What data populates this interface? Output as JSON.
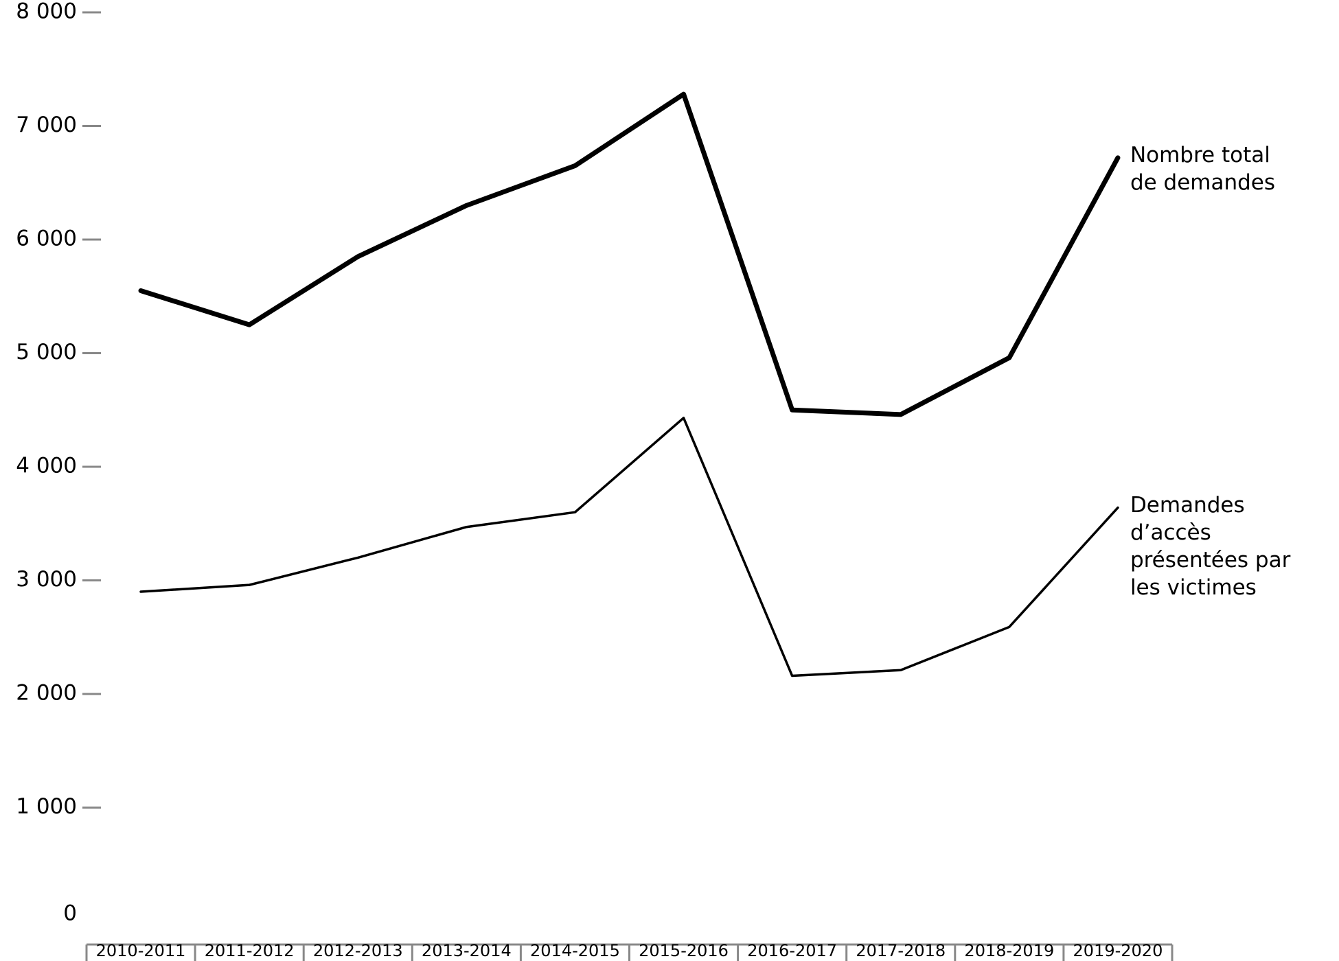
{
  "chart_data": {
    "type": "line",
    "categories": [
      "2010-2011",
      "2011-2012",
      "2012-2013",
      "2013-2014",
      "2014-2015",
      "2015-2016",
      "2016-2017",
      "2017-2018",
      "2018-2019",
      "2019-2020"
    ],
    "series": [
      {
        "name": "Nombre total de demandes",
        "color": "#000000",
        "values": [
          5550,
          5250,
          5850,
          6300,
          6650,
          7280,
          4500,
          4460,
          4960,
          6720
        ]
      },
      {
        "name": "Demandes d’accès présentées par les victimes",
        "color": "#000000",
        "values": [
          2900,
          2960,
          3200,
          3470,
          3600,
          4430,
          2160,
          2210,
          2590,
          3640
        ]
      }
    ],
    "ylim": [
      0,
      8000
    ],
    "yticks": [
      0,
      {
        "value": 1000,
        "label": "1 000"
      },
      {
        "value": 2000,
        "label": "2 000"
      },
      {
        "value": 3000,
        "label": "3 000"
      },
      {
        "value": 4000,
        "label": "4 000"
      },
      {
        "value": 5000,
        "label": "5 000"
      },
      {
        "value": 6000,
        "label": "6 000"
      },
      {
        "value": 7000,
        "label": "7 000"
      },
      {
        "value": 8000,
        "label": "8 000"
      }
    ],
    "grid": false
  }
}
